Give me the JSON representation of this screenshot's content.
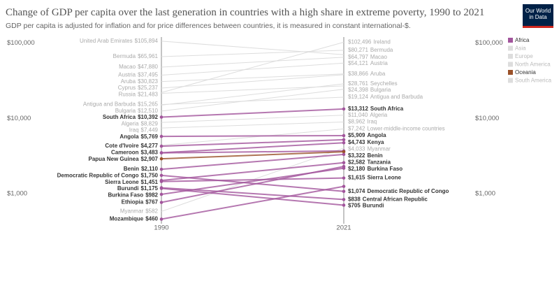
{
  "chart_data": {
    "type": "slope",
    "title": "Change of GDP per capita over the last generation in countries with a high share in extreme poverty, 1990 to 2021",
    "subtitle": "GDP per capita is adjusted for inflation and for price differences between countries, it is measured in constant international-$.",
    "logo": "Our World in Data",
    "x": [
      1990,
      2021
    ],
    "log_scale": true,
    "ylim": [
      400,
      120000
    ],
    "yticks": [
      {
        "value": 1000,
        "label": "$1,000"
      },
      {
        "value": 10000,
        "label": "$10,000"
      },
      {
        "value": 100000,
        "label": "$100,000"
      }
    ],
    "legend": [
      {
        "name": "Africa",
        "color": "#a2559c",
        "active": true
      },
      {
        "name": "Asia",
        "color": "#dddddd",
        "active": false
      },
      {
        "name": "Europe",
        "color": "#dddddd",
        "active": false
      },
      {
        "name": "North America",
        "color": "#dddddd",
        "active": false
      },
      {
        "name": "Oceania",
        "color": "#9a5129",
        "active": true
      },
      {
        "name": "South America",
        "color": "#dddddd",
        "active": false
      }
    ],
    "series": [
      {
        "name": "United Arab Emirates",
        "color": "#dddddd",
        "highlighted": false,
        "values": [
          105894,
          70000
        ],
        "value_labels": [
          "$105,894",
          null
        ]
      },
      {
        "name": "Ireland",
        "color": "#dddddd",
        "highlighted": false,
        "values": [
          22000,
          102496
        ],
        "value_labels": [
          null,
          "$102,496"
        ]
      },
      {
        "name": "Bermuda",
        "color": "#dddddd",
        "highlighted": false,
        "values": [
          65961,
          80271
        ],
        "value_labels": [
          "$65,961",
          "$80,271"
        ]
      },
      {
        "name": "Macao",
        "color": "#dddddd",
        "highlighted": false,
        "values": [
          47880,
          64797
        ],
        "value_labels": [
          "$47,880",
          "$64,797"
        ]
      },
      {
        "name": "Austria",
        "color": "#dddddd",
        "highlighted": false,
        "values": [
          37495,
          54121
        ],
        "value_labels": [
          "$37,495",
          "$54,121"
        ]
      },
      {
        "name": "Aruba",
        "color": "#dddddd",
        "highlighted": false,
        "values": [
          30823,
          38866
        ],
        "value_labels": [
          "$30,823",
          "$38,866"
        ]
      },
      {
        "name": "Cyprus",
        "color": "#dddddd",
        "highlighted": false,
        "values": [
          25237,
          38000
        ],
        "value_labels": [
          "$25,237",
          null
        ]
      },
      {
        "name": "Seychelles",
        "color": "#dddddd",
        "highlighted": false,
        "values": [
          15000,
          28761
        ],
        "value_labels": [
          null,
          "$28,761"
        ]
      },
      {
        "name": "Russia",
        "color": "#dddddd",
        "highlighted": false,
        "values": [
          21483,
          27000
        ],
        "value_labels": [
          "$21,483",
          null
        ]
      },
      {
        "name": "Bulgaria",
        "color": "#dddddd",
        "highlighted": false,
        "values": [
          12510,
          24398
        ],
        "value_labels": [
          "$12,510",
          "$24,398"
        ]
      },
      {
        "name": "Antigua and Barbuda",
        "color": "#dddddd",
        "highlighted": false,
        "values": [
          15265,
          19124
        ],
        "value_labels": [
          "$15,265",
          "$19,124"
        ]
      },
      {
        "name": "Algeria",
        "color": "#dddddd",
        "highlighted": false,
        "values": [
          8829,
          11040
        ],
        "value_labels": [
          "$8,829",
          "$11,040"
        ]
      },
      {
        "name": "Iraq",
        "color": "#dddddd",
        "highlighted": false,
        "values": [
          7449,
          8962
        ],
        "value_labels": [
          "$7,449",
          "$8,962"
        ]
      },
      {
        "name": "Lower-middle-income countries",
        "color": "#dddddd",
        "highlighted": false,
        "values": [
          4400,
          7242
        ],
        "value_labels": [
          null,
          "$7,242"
        ]
      },
      {
        "name": "Myanmar",
        "color": "#dddddd",
        "highlighted": false,
        "values": [
          582,
          4033
        ],
        "value_labels": [
          "$582",
          "$4,033"
        ]
      },
      {
        "name": "South Africa",
        "color": "#a2559c",
        "highlighted": true,
        "values": [
          10392,
          13312
        ],
        "value_labels": [
          "$10,392",
          "$13,312"
        ]
      },
      {
        "name": "Angola",
        "color": "#a2559c",
        "highlighted": true,
        "values": [
          5769,
          5909
        ],
        "value_labels": [
          "$5,769",
          "$5,909"
        ]
      },
      {
        "name": "Kenya",
        "color": "#a2559c",
        "highlighted": true,
        "values": [
          3500,
          4743
        ],
        "value_labels": [
          null,
          "$4,743"
        ]
      },
      {
        "name": "Cote d'Ivoire",
        "color": "#a2559c",
        "highlighted": true,
        "values": [
          4277,
          5200
        ],
        "value_labels": [
          "$4,277",
          null
        ]
      },
      {
        "name": "Cameroon",
        "color": "#a2559c",
        "highlighted": true,
        "values": [
          3483,
          3700
        ],
        "value_labels": [
          "$3,483",
          null
        ]
      },
      {
        "name": "Papua New Guinea",
        "color": "#9a5129",
        "highlighted": true,
        "values": [
          2907,
          3600
        ],
        "value_labels": [
          "$2,907",
          null
        ]
      },
      {
        "name": "Benin",
        "color": "#a2559c",
        "highlighted": true,
        "values": [
          2110,
          3322
        ],
        "value_labels": [
          "$2,110",
          "$3,322"
        ]
      },
      {
        "name": "Tanzania",
        "color": "#a2559c",
        "highlighted": true,
        "values": [
          1500,
          2582
        ],
        "value_labels": [
          null,
          "$2,582"
        ]
      },
      {
        "name": "Democratic Republic of Congo",
        "color": "#a2559c",
        "highlighted": true,
        "values": [
          1750,
          1074
        ],
        "value_labels": [
          "$1,750",
          "$1,074"
        ]
      },
      {
        "name": "Burkina Faso",
        "color": "#a2559c",
        "highlighted": true,
        "values": [
          982,
          2180
        ],
        "value_labels": [
          "$982",
          "$2,180"
        ]
      },
      {
        "name": "Sierra Leone",
        "color": "#a2559c",
        "highlighted": true,
        "values": [
          1451,
          1615
        ],
        "value_labels": [
          "$1,451",
          "$1,615"
        ]
      },
      {
        "name": "Burundi",
        "color": "#a2559c",
        "highlighted": true,
        "values": [
          1175,
          705
        ],
        "value_labels": [
          "$1,175",
          "$705"
        ]
      },
      {
        "name": "Central African Republic",
        "color": "#a2559c",
        "highlighted": true,
        "values": [
          1200,
          838
        ],
        "value_labels": [
          null,
          "$838"
        ]
      },
      {
        "name": "Ethiopia",
        "color": "#a2559c",
        "highlighted": true,
        "values": [
          767,
          2300
        ],
        "value_labels": [
          "$767",
          null
        ]
      },
      {
        "name": "Mozambique",
        "color": "#a2559c",
        "highlighted": true,
        "values": [
          460,
          1250
        ],
        "value_labels": [
          "$460",
          null
        ]
      }
    ]
  }
}
